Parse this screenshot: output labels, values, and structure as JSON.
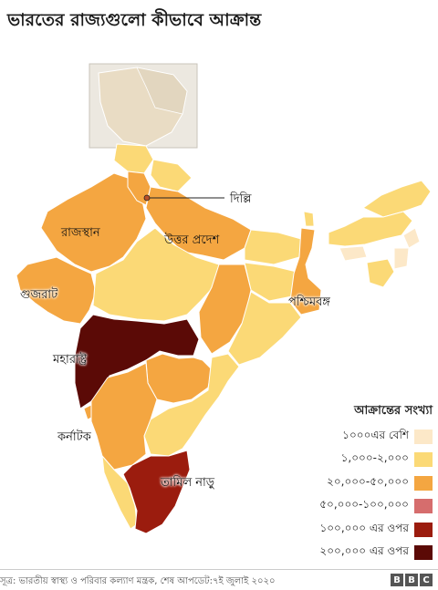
{
  "title": "ভারতের রাজ্যগুলো কীভাবে আক্রান্ত",
  "colors": {
    "c1": "#fce8c8",
    "c2": "#fbd976",
    "c3": "#f4a641",
    "c4": "#d66d6d",
    "c5": "#9b1c0e",
    "c6": "#5b0a06",
    "disputed": "#e2ddd4"
  },
  "labels": {
    "delhi": "দিল্লি",
    "rajasthan": "রাজস্থান",
    "up": "উত্তর প্রদেশ",
    "gujarat": "গুজরাট",
    "wb": "পশ্চিমবঙ্গ",
    "maharashtra": "মহারাষ্ট্র",
    "karnataka": "কর্নাটক",
    "tamilnadu": "তামিল নাড়ু"
  },
  "legend": {
    "title": "আক্রান্তের সংখ্যা",
    "items": [
      {
        "label": "১০০০এর বেশি",
        "color": "#fce8c8"
      },
      {
        "label": "১,০০০-২,০০০",
        "color": "#fbd976"
      },
      {
        "label": "২০,০০০-৫০,০০০",
        "color": "#f4a641"
      },
      {
        "label": "৫০,০০০-১০০,০০০",
        "color": "#d66d6d"
      },
      {
        "label": "১০০,০০০ এর ওপর",
        "color": "#9b1c0e"
      },
      {
        "label": "২০০,০০০ এর ওপর",
        "color": "#5b0a06"
      }
    ]
  },
  "source": "সূত্র: ভারতীয় স্বাস্থ্য ও পরিবার কল্যাণ মন্ত্রক, শেষ আপডেট:৭ই জুলাই ২০২০",
  "logo": [
    "B",
    "B",
    "C"
  ]
}
